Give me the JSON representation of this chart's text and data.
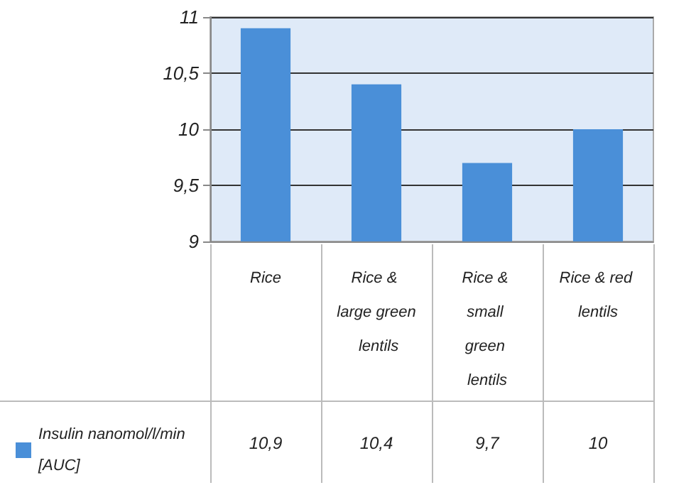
{
  "chart_data": {
    "type": "bar",
    "categories": [
      "Rice",
      "Rice & large green lentils",
      "Rice & small green lentils",
      "Rice & red lentils"
    ],
    "series": [
      {
        "name": "Insulin nanomol/l/min [AUC]",
        "color": "#4a8fd8",
        "values": [
          10.9,
          10.4,
          9.7,
          10
        ],
        "value_labels": [
          "10,9",
          "10,4",
          "9,7",
          "10"
        ]
      }
    ],
    "ylim": [
      9,
      11
    ],
    "yticks": [
      9,
      {
        "value": 9.5,
        "label": "9,5"
      },
      10,
      {
        "value": 10.5,
        "label": "10,5"
      },
      11
    ],
    "grid": "y",
    "legend": "bottom left"
  }
}
